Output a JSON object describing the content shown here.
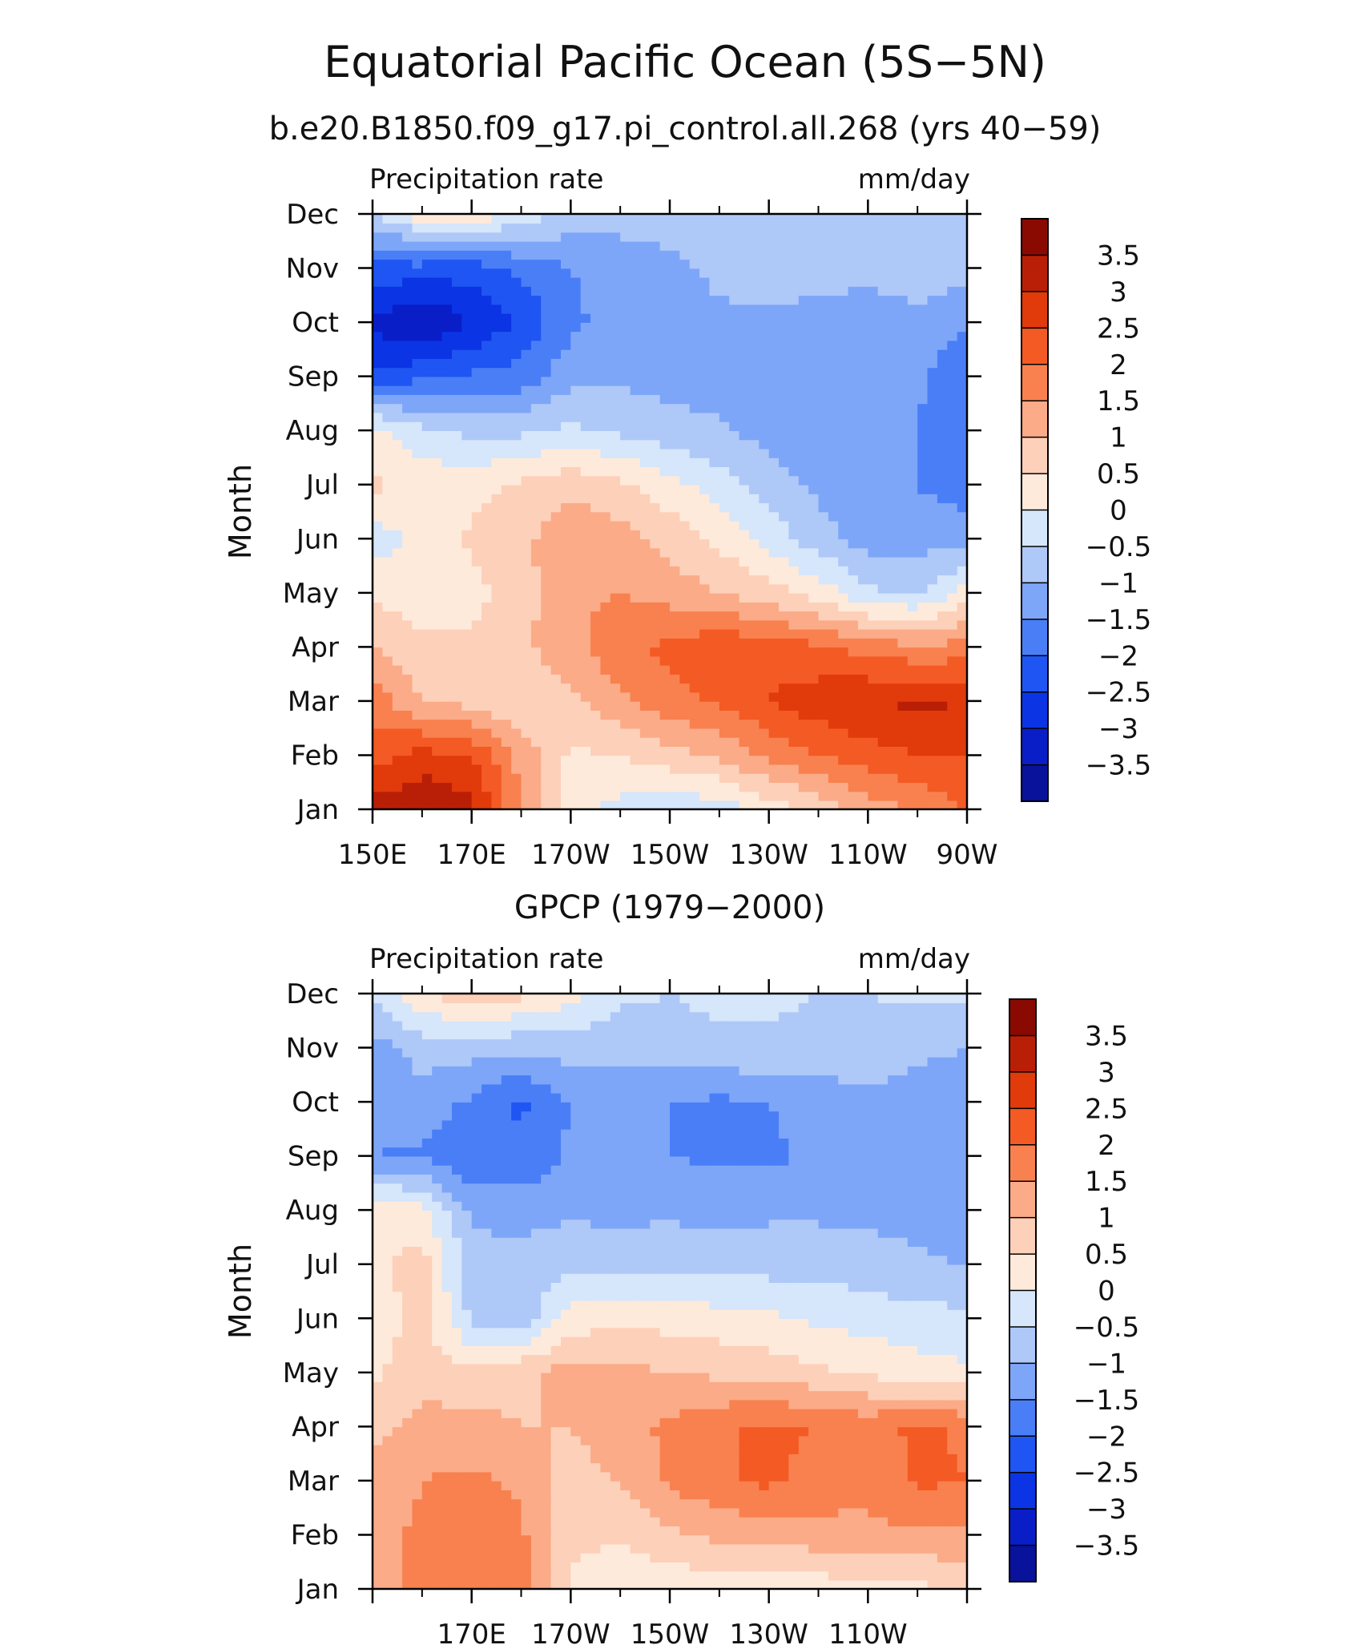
{
  "figure": {
    "title": "Equatorial Pacific Ocean (5S−5N)",
    "subtitle": "b.e20.B1850.f09_g17.pi_control.all.268 (yrs 40−59)"
  },
  "chart_data": [
    {
      "type": "heatmap",
      "panel": "model",
      "panel_title": "",
      "left_label": "Precipitation rate",
      "right_label": "mm/day",
      "ylabel": "Month",
      "xlabel": "",
      "x_tick_labels": [
        "150E",
        "170E",
        "170W",
        "150W",
        "130W",
        "110W",
        "90W"
      ],
      "x_tick_values": [
        150,
        170,
        190,
        210,
        230,
        250,
        270
      ],
      "xlim": [
        150,
        270
      ],
      "y_tick_labels": [
        "Jan",
        "Feb",
        "Mar",
        "Apr",
        "May",
        "Jun",
        "Jul",
        "Aug",
        "Sep",
        "Oct",
        "Nov",
        "Dec"
      ],
      "longitudes": [
        150,
        160,
        170,
        180,
        190,
        200,
        210,
        220,
        230,
        240,
        250,
        260,
        270
      ],
      "months": [
        "Jan",
        "Feb",
        "Mar",
        "Apr",
        "May",
        "Jun",
        "Jul",
        "Aug",
        "Sep",
        "Oct",
        "Nov",
        "Dec"
      ],
      "values": [
        [
          3.2,
          3.5,
          3.2,
          1.5,
          0.2,
          -0.2,
          -0.4,
          -0.3,
          0.2,
          0.6,
          1.2,
          1.6,
          2.0
        ],
        [
          2.3,
          2.7,
          2.5,
          1.3,
          0.4,
          0.5,
          0.8,
          1.1,
          1.6,
          2.0,
          2.3,
          2.5,
          2.5
        ],
        [
          1.8,
          1.0,
          0.8,
          0.6,
          0.9,
          1.4,
          1.8,
          2.1,
          2.5,
          2.8,
          3.0,
          3.1,
          3.0
        ],
        [
          1.0,
          0.6,
          0.6,
          0.9,
          1.3,
          1.9,
          2.1,
          2.4,
          2.3,
          2.1,
          1.8,
          1.6,
          1.7
        ],
        [
          0.4,
          0.2,
          0.3,
          0.8,
          1.4,
          1.5,
          1.3,
          1.0,
          0.7,
          0.3,
          -0.4,
          -0.6,
          0.2
        ],
        [
          -0.3,
          0.2,
          0.6,
          0.9,
          1.3,
          1.2,
          0.8,
          0.4,
          -0.2,
          -0.8,
          -1.2,
          -1.2,
          -1.2
        ],
        [
          0.6,
          0.4,
          0.3,
          0.6,
          0.9,
          0.6,
          0.2,
          -0.3,
          -0.7,
          -1.1,
          -1.3,
          -1.5,
          -1.8
        ],
        [
          0.2,
          -0.4,
          -0.6,
          -0.6,
          -0.4,
          -0.6,
          -0.8,
          -0.9,
          -1.2,
          -1.4,
          -1.5,
          -1.5,
          -1.8
        ],
        [
          -2.4,
          -2.1,
          -1.9,
          -1.8,
          -1.2,
          -1.1,
          -1.2,
          -1.3,
          -1.4,
          -1.5,
          -1.4,
          -1.4,
          -2.0
        ],
        [
          -3.1,
          -3.6,
          -3.0,
          -2.4,
          -1.6,
          -1.3,
          -1.2,
          -1.1,
          -1.1,
          -1.2,
          -1.2,
          -1.1,
          -1.4
        ],
        [
          -2.2,
          -2.2,
          -2.3,
          -1.9,
          -1.5,
          -1.3,
          -1.1,
          -0.9,
          -0.7,
          -0.8,
          -0.9,
          -0.8,
          -0.8
        ],
        [
          -0.6,
          0.3,
          0.4,
          -0.2,
          -0.7,
          -0.8,
          -0.8,
          -0.7,
          -0.6,
          -0.6,
          -0.6,
          -0.6,
          -0.6
        ]
      ],
      "colorbar_ticks": [
        "3.5",
        "3",
        "2.5",
        "2",
        "1.5",
        "1",
        "0.5",
        "0",
        "−0.5",
        "−1",
        "−1.5",
        "−2",
        "−2.5",
        "−3",
        "−3.5"
      ],
      "levels": [
        -3.5,
        -3,
        -2.5,
        -2,
        -1.5,
        -1,
        -0.5,
        0,
        0.5,
        1,
        1.5,
        2,
        2.5,
        3,
        3.5
      ],
      "colors": [
        "#08129a",
        "#0a1ec8",
        "#0b34e4",
        "#1f55f2",
        "#4a7ef7",
        "#7ea6f8",
        "#aec8f8",
        "#d6e6fb",
        "#feeadb",
        "#fdd0b9",
        "#fbab88",
        "#f8814f",
        "#f45a24",
        "#e13a0b",
        "#b91f06",
        "#8a0a02"
      ]
    },
    {
      "type": "heatmap",
      "panel": "observations",
      "panel_title": "GPCP (1979−2000)",
      "left_label": "Precipitation rate",
      "right_label": "mm/day",
      "ylabel": "Month",
      "xlabel": "",
      "x_tick_labels": [
        "170E",
        "170W",
        "150W",
        "130W",
        "110W"
      ],
      "x_tick_values": [
        170,
        190,
        210,
        230,
        250
      ],
      "xlim": [
        150,
        270
      ],
      "y_tick_labels": [
        "Jan",
        "Feb",
        "Mar",
        "Apr",
        "May",
        "Jun",
        "Jul",
        "Aug",
        "Sep",
        "Oct",
        "Nov",
        "Dec"
      ],
      "longitudes": [
        150,
        160,
        170,
        180,
        190,
        200,
        210,
        220,
        230,
        240,
        250,
        260,
        270
      ],
      "months": [
        "Jan",
        "Feb",
        "Mar",
        "Apr",
        "May",
        "Jun",
        "Jul",
        "Aug",
        "Sep",
        "Oct",
        "Nov",
        "Dec"
      ],
      "values": [
        [
          1.3,
          1.6,
          1.7,
          1.8,
          0.4,
          0.1,
          0.1,
          0.2,
          0.1,
          0.2,
          0.3,
          0.4,
          0.5
        ],
        [
          1.3,
          1.6,
          1.8,
          1.6,
          0.6,
          0.6,
          0.9,
          1.1,
          1.2,
          1.3,
          1.4,
          1.4,
          1.4
        ],
        [
          1.2,
          1.5,
          1.6,
          1.4,
          0.8,
          1.0,
          1.6,
          1.9,
          2.1,
          1.8,
          1.6,
          2.1,
          2.0
        ],
        [
          0.8,
          1.2,
          1.2,
          1.0,
          1.0,
          1.3,
          1.6,
          1.9,
          2.1,
          2.0,
          1.8,
          2.1,
          1.9
        ],
        [
          0.4,
          0.8,
          0.6,
          0.9,
          1.2,
          1.2,
          1.0,
          0.9,
          0.8,
          0.6,
          0.4,
          0.2,
          0.1
        ],
        [
          0.2,
          0.7,
          -0.6,
          -0.8,
          0.2,
          0.4,
          0.3,
          0.2,
          0.1,
          -0.1,
          -0.2,
          -0.3,
          -0.4
        ],
        [
          0.4,
          0.7,
          -0.8,
          -0.8,
          -0.6,
          -0.6,
          -0.6,
          -0.7,
          -0.7,
          -0.7,
          -0.8,
          -0.9,
          -1.0
        ],
        [
          0.3,
          0.2,
          -1.1,
          -1.2,
          -1.1,
          -1.2,
          -1.1,
          -1.2,
          -1.1,
          -1.1,
          -1.1,
          -1.2,
          -1.4
        ],
        [
          -1.5,
          -1.6,
          -2.0,
          -1.9,
          -1.4,
          -1.3,
          -1.5,
          -1.6,
          -1.6,
          -1.4,
          -1.3,
          -1.4,
          -1.4
        ],
        [
          -1.4,
          -1.2,
          -1.6,
          -2.1,
          -1.5,
          -1.2,
          -1.5,
          -1.6,
          -1.5,
          -1.3,
          -1.1,
          -1.4,
          -1.5
        ],
        [
          -1.2,
          -0.8,
          -0.8,
          -0.9,
          -0.8,
          -0.9,
          -0.7,
          -0.6,
          -0.6,
          -0.7,
          -0.7,
          -0.8,
          -1.0
        ],
        [
          -0.4,
          0.4,
          0.9,
          0.6,
          0.2,
          -0.4,
          -0.5,
          -0.4,
          -0.4,
          -0.5,
          -0.5,
          -0.4,
          -0.4
        ]
      ],
      "colorbar_ticks": [
        "3.5",
        "3",
        "2.5",
        "2",
        "1.5",
        "1",
        "0.5",
        "0",
        "−0.5",
        "−1",
        "−1.5",
        "−2",
        "−2.5",
        "−3",
        "−3.5"
      ],
      "levels": [
        -3.5,
        -3,
        -2.5,
        -2,
        -1.5,
        -1,
        -0.5,
        0,
        0.5,
        1,
        1.5,
        2,
        2.5,
        3,
        3.5
      ],
      "colors": [
        "#08129a",
        "#0a1ec8",
        "#0b34e4",
        "#1f55f2",
        "#4a7ef7",
        "#7ea6f8",
        "#aec8f8",
        "#d6e6fb",
        "#feeadb",
        "#fdd0b9",
        "#fbab88",
        "#f8814f",
        "#f45a24",
        "#e13a0b",
        "#b91f06",
        "#8a0a02"
      ]
    }
  ]
}
